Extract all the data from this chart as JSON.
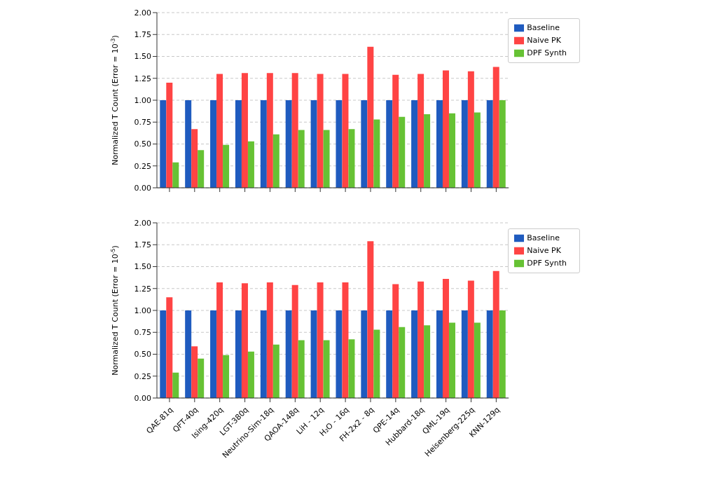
{
  "chart_data": [
    {
      "type": "bar",
      "ylabel": "Normalized T Count (Error = 10$^{-3}$)",
      "categories": [
        null,
        null,
        null,
        null,
        null,
        null,
        null,
        null,
        null,
        null,
        null,
        null,
        null,
        null
      ],
      "series": [
        {
          "name": "Baseline",
          "color": "#1f5bbf",
          "values": [
            1,
            1,
            1,
            1,
            1,
            1,
            1,
            1,
            1,
            1,
            1,
            1,
            1,
            1
          ]
        },
        {
          "name": "Naive PK",
          "color": "#ff4444",
          "values": [
            1.2,
            0.67,
            1.3,
            1.31,
            1.31,
            1.31,
            1.3,
            1.3,
            1.61,
            1.29,
            1.3,
            1.34,
            1.33,
            1.38
          ]
        },
        {
          "name": "DPF Synth",
          "color": "#66c234",
          "values": [
            0.29,
            0.43,
            0.49,
            0.53,
            0.61,
            0.66,
            0.66,
            0.67,
            0.78,
            0.81,
            0.84,
            0.85,
            0.86,
            1.0
          ]
        }
      ],
      "ylim": [
        0,
        2
      ],
      "yticks": [
        {
          "value": 0,
          "label": "0.00"
        },
        {
          "value": 0.25,
          "label": "0.25"
        },
        {
          "value": 0.5,
          "label": "0.50"
        },
        {
          "value": 0.75,
          "label": "0.75"
        },
        {
          "value": 1,
          "label": "1.00"
        },
        {
          "value": 1.25,
          "label": "1.25"
        },
        {
          "value": 1.5,
          "label": "1.50"
        },
        {
          "value": 1.75,
          "label": "1.75"
        },
        {
          "value": 2,
          "label": "2.00"
        }
      ],
      "grid": "y",
      "legend": "top right"
    },
    {
      "type": "bar",
      "ylabel": "Normalized T Count (Error = 10$^{-5}$)",
      "categories": [
        "QAE-81q",
        "QFT-40q",
        "Ising-420q",
        "LGT-380q",
        "Neutrino-Sim-18q",
        "QAOA-148q",
        "LiH - 12q",
        "H₂O - 16q",
        "FH-2x2 - 8q",
        "QPE-14q",
        "Hubbard-18q",
        "QML-19q",
        "Heisenberg-225q",
        "KNN-129q"
      ],
      "series": [
        {
          "name": "Baseline",
          "color": "#1f5bbf",
          "values": [
            1,
            1,
            1,
            1,
            1,
            1,
            1,
            1,
            1,
            1,
            1,
            1,
            1,
            1
          ]
        },
        {
          "name": "Naive PK",
          "color": "#ff4444",
          "values": [
            1.15,
            0.59,
            1.32,
            1.31,
            1.32,
            1.29,
            1.32,
            1.32,
            1.79,
            1.3,
            1.33,
            1.36,
            1.34,
            1.45
          ]
        },
        {
          "name": "DPF Synth",
          "color": "#66c234",
          "values": [
            0.29,
            0.45,
            0.49,
            0.53,
            0.61,
            0.66,
            0.66,
            0.67,
            0.78,
            0.81,
            0.83,
            0.86,
            0.86,
            1.0
          ]
        }
      ],
      "ylim": [
        0,
        2
      ],
      "yticks": [
        {
          "value": 0,
          "label": "0.00"
        },
        {
          "value": 0.25,
          "label": "0.25"
        },
        {
          "value": 0.5,
          "label": "0.50"
        },
        {
          "value": 0.75,
          "label": "0.75"
        },
        {
          "value": 1,
          "label": "1.00"
        },
        {
          "value": 1.25,
          "label": "1.25"
        },
        {
          "value": 1.5,
          "label": "1.50"
        },
        {
          "value": 1.75,
          "label": "1.75"
        },
        {
          "value": 2,
          "label": "2.00"
        }
      ],
      "grid": "y",
      "legend": "top right"
    }
  ]
}
